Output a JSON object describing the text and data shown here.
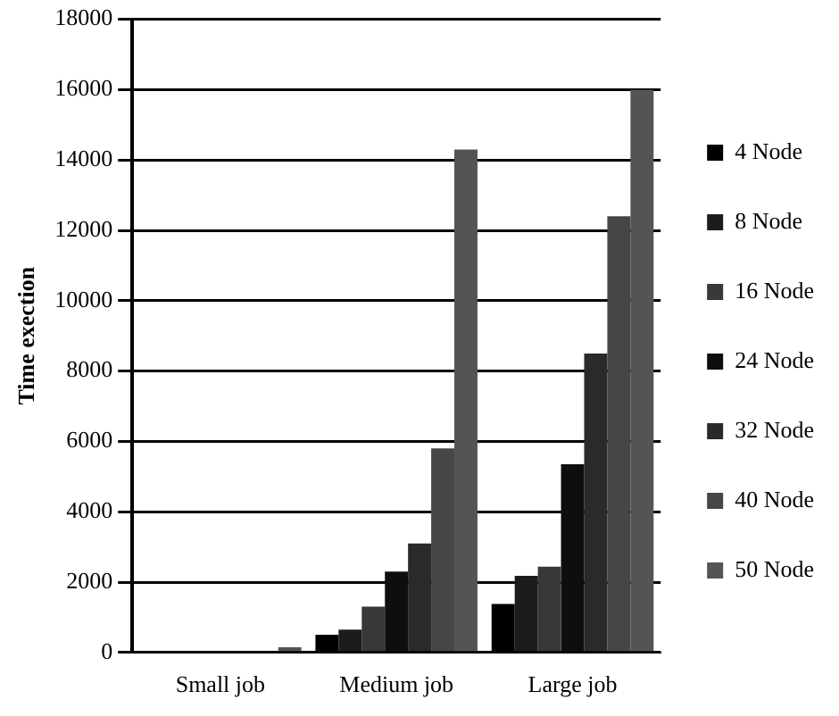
{
  "chart_data": {
    "type": "bar",
    "ylabel": "Time exection",
    "categories": [
      "Small job",
      "Medium job",
      "Large job"
    ],
    "series": [
      {
        "name": "4 Node",
        "color": "#000000",
        "values": [
          null,
          500,
          1380
        ]
      },
      {
        "name": "8 Node",
        "color": "#1c1c1c",
        "values": [
          null,
          650,
          2180
        ]
      },
      {
        "name": "16 Node",
        "color": "#383838",
        "values": [
          null,
          1300,
          2440
        ]
      },
      {
        "name": "24 Node",
        "color": "#0e0e0e",
        "values": [
          null,
          2300,
          5350
        ]
      },
      {
        "name": "32 Node",
        "color": "#2a2a2a",
        "values": [
          null,
          3100,
          8500
        ]
      },
      {
        "name": "40 Node",
        "color": "#464646",
        "values": [
          null,
          5800,
          12400
        ]
      },
      {
        "name": "50 Node",
        "color": "#545454",
        "values": [
          150,
          14300,
          16000
        ]
      }
    ],
    "ylim": [
      0,
      18000
    ],
    "yticks": [
      0,
      2000,
      4000,
      6000,
      8000,
      10000,
      12000,
      14000,
      16000,
      18000
    ],
    "grid": "y",
    "legend": "right"
  }
}
